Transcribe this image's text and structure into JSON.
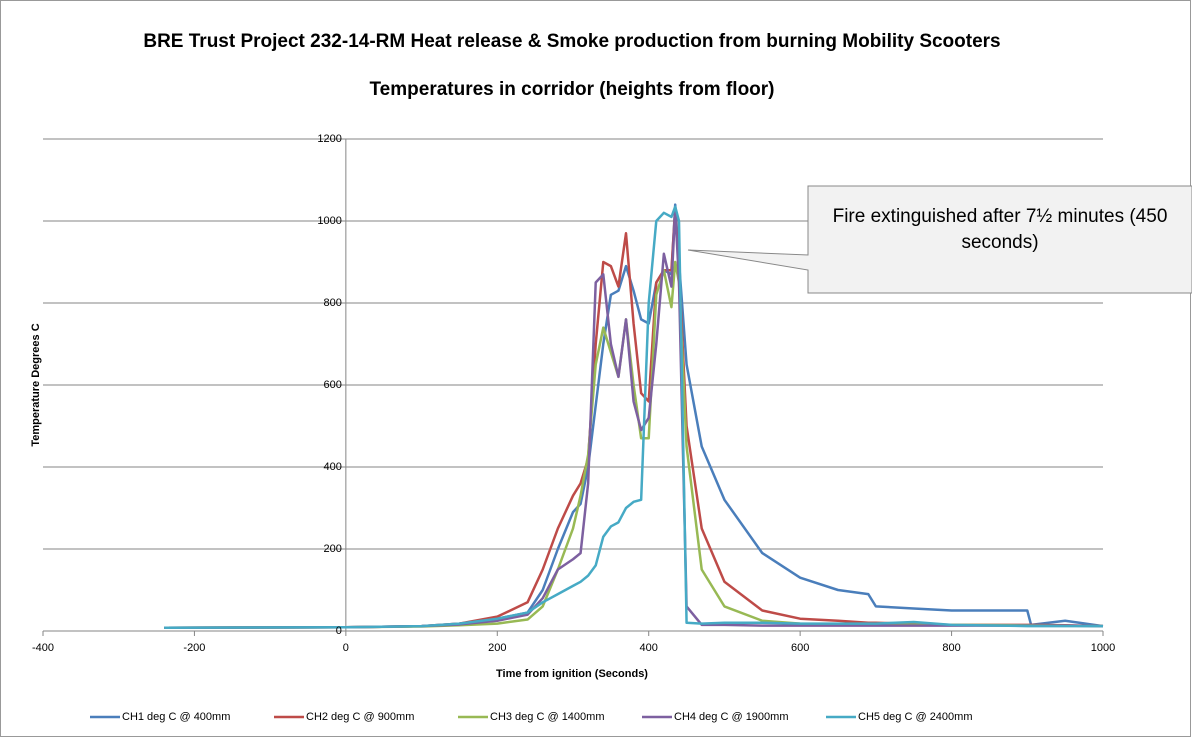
{
  "chart_data": {
    "type": "line",
    "title": "BRE Trust Project 232-14-RM Heat release & Smoke production from burning Mobility Scooters",
    "subtitle": "Temperatures in corridor (heights from floor)",
    "x_label": "Time from ignition (Seconds)",
    "y_label": "Temperature Degrees C",
    "annotation": "Fire extinguished after 7½ minutes (450 seconds)",
    "xlim": [
      -400,
      1000
    ],
    "xticks": [
      -400,
      -200,
      0,
      200,
      400,
      600,
      800,
      1000
    ],
    "ylim": [
      0,
      1200
    ],
    "yticks": [
      0,
      200,
      400,
      600,
      800,
      1000,
      1200
    ],
    "grid": true,
    "legend": "bottom",
    "x": [
      -240,
      0,
      100,
      150,
      200,
      240,
      260,
      280,
      300,
      310,
      320,
      330,
      340,
      350,
      360,
      370,
      380,
      390,
      400,
      410,
      420,
      430,
      435,
      440,
      450,
      470,
      500,
      550,
      600,
      650,
      690,
      700,
      750,
      800,
      900,
      905,
      950,
      1000
    ],
    "series": [
      {
        "name": "CH1 deg C @ 400mm",
        "color": "#4a7ebb",
        "values": [
          8,
          9,
          12,
          18,
          30,
          45,
          100,
          200,
          290,
          310,
          400,
          550,
          700,
          820,
          830,
          890,
          830,
          760,
          750,
          850,
          880,
          870,
          1040,
          900,
          650,
          450,
          320,
          190,
          130,
          100,
          90,
          60,
          55,
          50,
          50,
          15,
          25,
          12
        ]
      },
      {
        "name": "CH2 deg C @ 900mm",
        "color": "#be4b48",
        "values": [
          8,
          9,
          12,
          18,
          35,
          70,
          150,
          250,
          330,
          360,
          420,
          700,
          900,
          890,
          840,
          970,
          750,
          580,
          560,
          850,
          880,
          880,
          1030,
          880,
          500,
          250,
          120,
          50,
          30,
          25,
          20,
          20,
          18,
          15,
          15,
          15,
          14,
          12
        ]
      },
      {
        "name": "CH3 deg C @ 1400mm",
        "color": "#98b954",
        "values": [
          8,
          9,
          11,
          14,
          18,
          28,
          60,
          150,
          250,
          330,
          430,
          650,
          740,
          680,
          620,
          760,
          600,
          470,
          470,
          820,
          880,
          790,
          900,
          850,
          450,
          150,
          60,
          25,
          18,
          15,
          15,
          15,
          15,
          15,
          14,
          14,
          13,
          12
        ]
      },
      {
        "name": "CH4 deg C @ 1900mm",
        "color": "#7d60a0",
        "values": [
          8,
          9,
          12,
          16,
          25,
          40,
          80,
          150,
          175,
          190,
          360,
          850,
          870,
          700,
          620,
          760,
          560,
          490,
          520,
          700,
          920,
          840,
          1030,
          850,
          60,
          15,
          15,
          13,
          13,
          13,
          13,
          13,
          13,
          13,
          13,
          13,
          13,
          12
        ]
      },
      {
        "name": "CH5 deg C @ 2400mm",
        "color": "#46aac5",
        "values": [
          8,
          9,
          12,
          18,
          30,
          45,
          70,
          90,
          110,
          120,
          135,
          160,
          230,
          255,
          265,
          300,
          315,
          320,
          800,
          1000,
          1020,
          1010,
          1035,
          1000,
          20,
          18,
          20,
          20,
          18,
          18,
          18,
          18,
          22,
          15,
          12,
          12,
          12,
          12
        ]
      }
    ]
  }
}
